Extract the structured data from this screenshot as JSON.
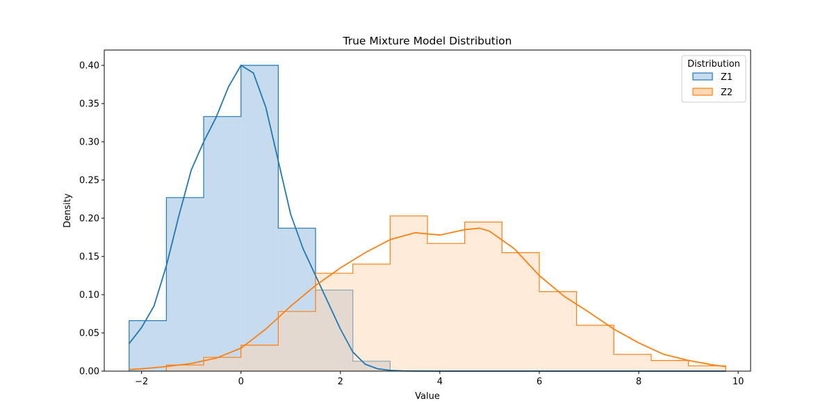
{
  "chart_data": {
    "type": "histogram",
    "title": "True Mixture Model Distribution",
    "xlabel": "Value",
    "ylabel": "Density",
    "xlim": [
      -2.75,
      10.25
    ],
    "ylim": [
      0,
      0.42
    ],
    "xticks": [
      -2,
      0,
      2,
      4,
      6,
      8,
      10
    ],
    "xtick_labels": [
      "−2",
      "0",
      "2",
      "4",
      "6",
      "8",
      "10"
    ],
    "yticks": [
      0.0,
      0.05,
      0.1,
      0.15,
      0.2,
      0.25,
      0.3,
      0.35,
      0.4
    ],
    "ytick_labels": [
      "0.00",
      "0.05",
      "0.10",
      "0.15",
      "0.20",
      "0.25",
      "0.30",
      "0.35",
      "0.40"
    ],
    "grid": false,
    "legend": {
      "title": "Distribution",
      "placement": "top-right"
    },
    "bin_edges": [
      -2.25,
      -1.5,
      -0.75,
      0.0,
      0.75,
      1.5,
      2.25,
      3.0,
      3.75,
      4.5,
      5.25,
      6.0,
      6.75,
      7.5,
      8.25,
      9.0,
      9.75
    ],
    "series": [
      {
        "name": "Z1",
        "color": "#1f77b4",
        "fill": "#c6dbed",
        "densities": [
          0.066,
          0.227,
          0.333,
          0.4,
          0.187,
          0.106,
          0.013,
          0,
          0,
          0,
          0,
          0,
          0,
          0,
          0,
          0
        ],
        "kde": {
          "x": [
            -2.25,
            -2.0,
            -1.75,
            -1.5,
            -1.25,
            -1.0,
            -0.75,
            -0.5,
            -0.25,
            0.0,
            0.25,
            0.5,
            0.75,
            1.0,
            1.25,
            1.5,
            1.75,
            2.0,
            2.25,
            2.5,
            2.75,
            3.0,
            3.25,
            3.5,
            4.0,
            5.0,
            6.0,
            7.0,
            8.0,
            9.0,
            9.75
          ],
          "y": [
            0.036,
            0.057,
            0.085,
            0.138,
            0.203,
            0.263,
            0.3,
            0.332,
            0.372,
            0.4,
            0.39,
            0.345,
            0.275,
            0.205,
            0.16,
            0.125,
            0.09,
            0.055,
            0.025,
            0.009,
            0.003,
            0.001,
            0.0003,
            0.0001,
            0,
            0,
            0,
            0,
            0,
            0,
            0
          ]
        }
      },
      {
        "name": "Z2",
        "color": "#ff7f0e",
        "fill": "#ffd7b4",
        "densities": [
          0,
          0.008,
          0.018,
          0.034,
          0.078,
          0.128,
          0.14,
          0.203,
          0.167,
          0.195,
          0.155,
          0.104,
          0.06,
          0.022,
          0.014,
          0.007
        ],
        "kde": {
          "x": [
            -2.25,
            -2.0,
            -1.5,
            -1.0,
            -0.5,
            0.0,
            0.5,
            1.0,
            1.5,
            2.0,
            2.5,
            3.0,
            3.5,
            4.0,
            4.5,
            4.8,
            5.0,
            5.5,
            6.0,
            6.5,
            7.0,
            7.5,
            8.0,
            8.5,
            9.0,
            9.5,
            9.75
          ],
          "y": [
            0.002,
            0.003,
            0.006,
            0.01,
            0.017,
            0.03,
            0.055,
            0.085,
            0.112,
            0.135,
            0.155,
            0.172,
            0.181,
            0.178,
            0.185,
            0.187,
            0.183,
            0.16,
            0.125,
            0.098,
            0.077,
            0.055,
            0.037,
            0.022,
            0.014,
            0.008,
            0.006
          ]
        }
      }
    ]
  }
}
